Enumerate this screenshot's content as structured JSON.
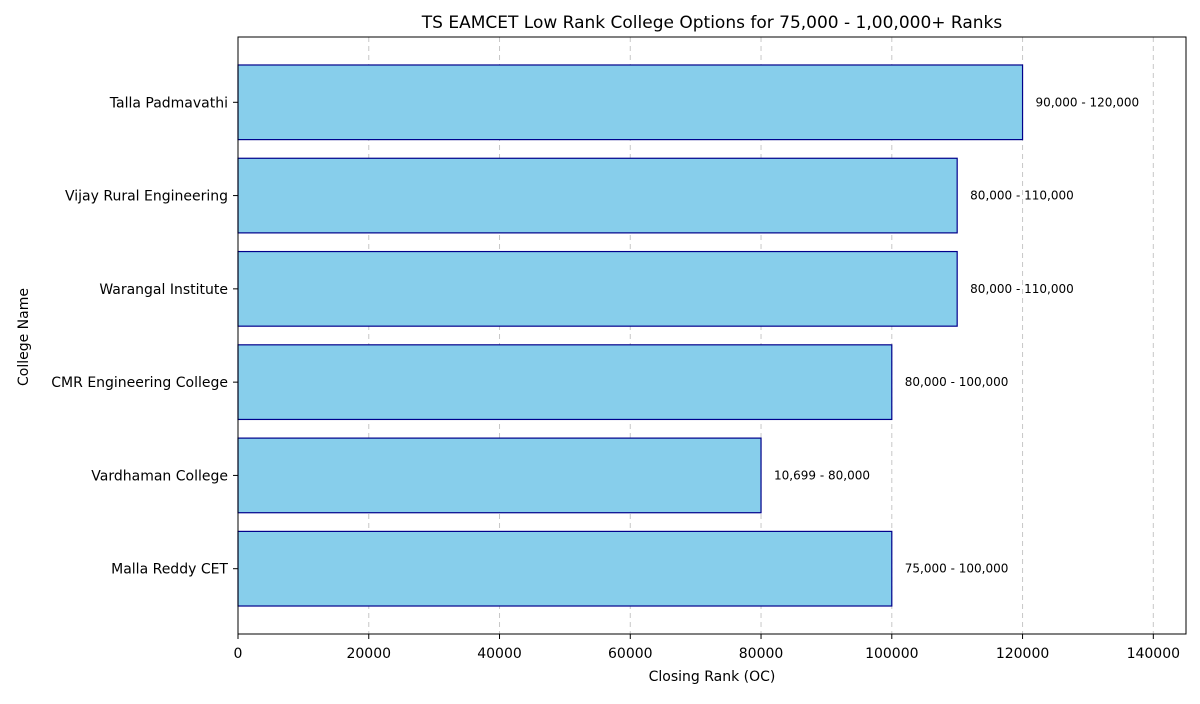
{
  "chart_data": {
    "type": "bar",
    "orientation": "horizontal",
    "title": "TS EAMCET Low Rank College Options for 75,000 - 1,00,000+ Ranks",
    "xlabel": "Closing Rank (OC)",
    "ylabel": "College Name",
    "xlim": [
      0,
      145000
    ],
    "xticks": [
      0,
      20000,
      40000,
      60000,
      80000,
      100000,
      120000,
      140000
    ],
    "xtick_labels": [
      "0",
      "20000",
      "40000",
      "60000",
      "80000",
      "100000",
      "120000",
      "140000"
    ],
    "grid": "x-dashed",
    "categories": [
      "Malla Reddy CET",
      "Vardhaman College",
      "CMR Engineering College",
      "Warangal Institute",
      "Vijay Rural Engineering",
      "Talla Padmavathi"
    ],
    "values": [
      100000,
      80000,
      100000,
      110000,
      110000,
      120000
    ],
    "data_labels": [
      "75,000 - 100,000",
      "10,699 - 80,000",
      "80,000 - 100,000",
      "80,000 - 110,000",
      "80,000 - 110,000",
      "90,000 - 120,000"
    ],
    "colors": {
      "bar_fill": "#87ceeb",
      "bar_edge": "#00008b",
      "grid": "#c8c8c8"
    }
  }
}
